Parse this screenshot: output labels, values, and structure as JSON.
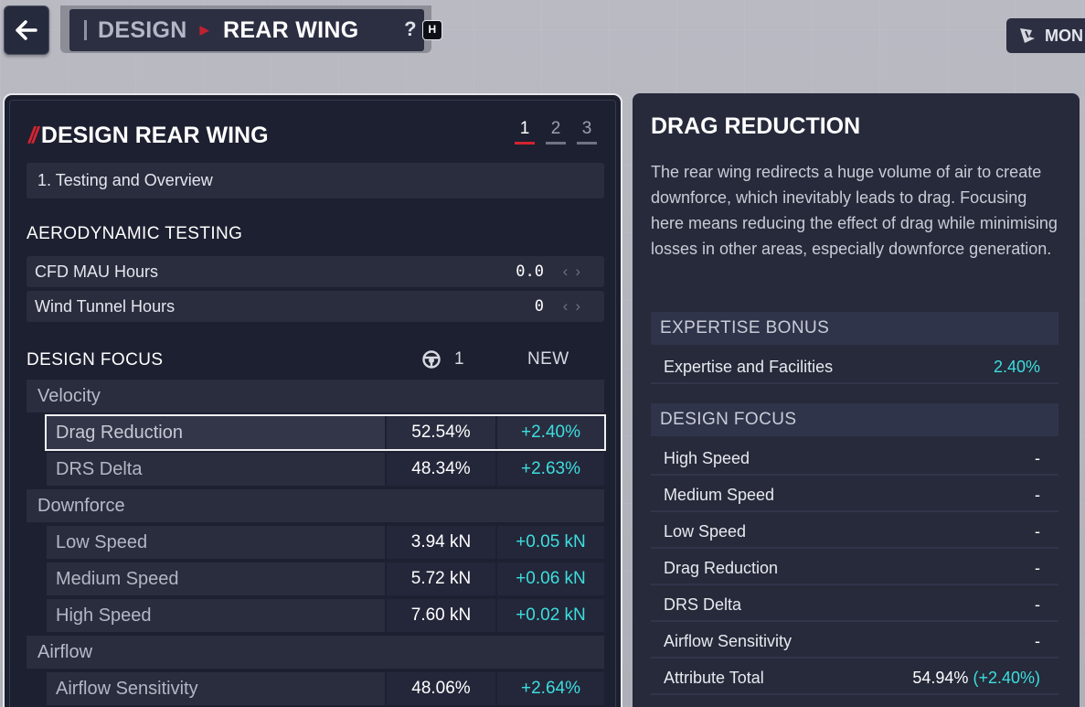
{
  "header": {
    "breadcrumb_section": "DESIGN",
    "breadcrumb_page": "REAR WING",
    "help_symbol": "?",
    "help_key": "H",
    "mode_label": "MON"
  },
  "left_panel": {
    "title": "DESIGN REAR WING",
    "steps": [
      "1",
      "2",
      "3"
    ],
    "stage_dropdown": "1. Testing and Overview",
    "aero_section_title": "AERODYNAMIC TESTING",
    "testing_rows": [
      {
        "label": "CFD MAU Hours",
        "value": "0.0"
      },
      {
        "label": "Wind Tunnel Hours",
        "value": "0"
      }
    ],
    "design_focus_title": "DESIGN FOCUS",
    "driver_column": "1",
    "new_column": "NEW",
    "categories": [
      "Velocity",
      "Downforce",
      "Airflow"
    ],
    "focus_rows": [
      {
        "name": "Drag Reduction",
        "current": "52.54%",
        "new": "+2.40%"
      },
      {
        "name": "DRS Delta",
        "current": "48.34%",
        "new": "+2.63%"
      },
      {
        "name": "Low Speed",
        "current": "3.94 kN",
        "new": "+0.05 kN"
      },
      {
        "name": "Medium Speed",
        "current": "5.72 kN",
        "new": "+0.06 kN"
      },
      {
        "name": "High Speed",
        "current": "7.60 kN",
        "new": "+0.02 kN"
      },
      {
        "name": "Airflow Sensitivity",
        "current": "48.06%",
        "new": "+2.64%"
      }
    ]
  },
  "right_panel": {
    "title": "DRAG REDUCTION",
    "description": "The rear wing redirects a huge volume of air to create downforce, which inevitably leads to drag. Focusing here means reducing the effect of drag while minimising losses in other areas, especially downforce generation.",
    "expertise_title": "EXPERTISE BONUS",
    "expertise_row": {
      "label": "Expertise and Facilities",
      "value": "2.40%"
    },
    "design_focus_title": "DESIGN FOCUS",
    "focus_rows": [
      {
        "label": "High Speed",
        "value": "-"
      },
      {
        "label": "Medium Speed",
        "value": "-"
      },
      {
        "label": "Low Speed",
        "value": "-"
      },
      {
        "label": "Drag Reduction",
        "value": "-"
      },
      {
        "label": "DRS Delta",
        "value": "-"
      },
      {
        "label": "Airflow Sensitivity",
        "value": "-"
      }
    ],
    "attribute_total": {
      "label": "Attribute Total",
      "value": "54.94%",
      "delta": "(+2.40%)"
    }
  },
  "colors": {
    "accent_red": "#d42431",
    "accent_cyan": "#3ddede",
    "panel": "#1d2030"
  }
}
